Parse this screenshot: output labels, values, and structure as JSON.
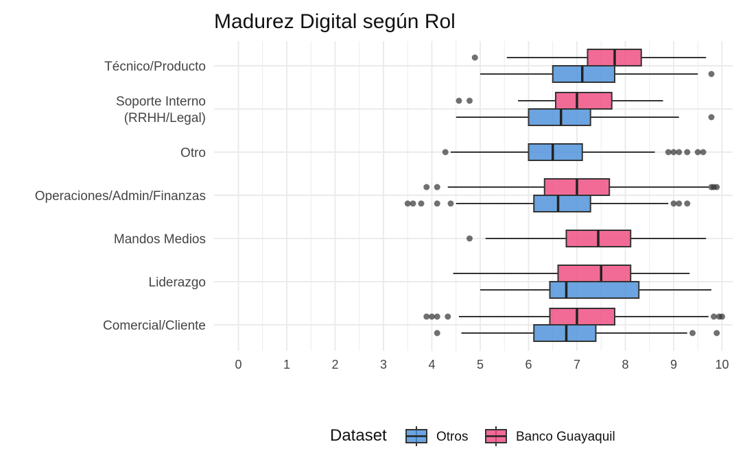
{
  "chart_data": {
    "type": "boxplot",
    "orientation": "horizontal",
    "title": "Madurez Digital según Rol",
    "xlabel": "",
    "ylabel": "",
    "xlim": [
      0,
      10
    ],
    "x_ticks": [
      "0",
      "1",
      "2",
      "3",
      "4",
      "5",
      "6",
      "7",
      "8",
      "9",
      "10"
    ],
    "grid": true,
    "legend_position": "bottom",
    "legend_title": "Dataset",
    "colors": {
      "Otros": "#4a90d9",
      "Banco Guayaquil": "#ee4a7f"
    },
    "categories": [
      "Técnico/Producto",
      [
        "Soporte Interno",
        "(RRHH/Legal)"
      ],
      "Otro",
      "Operaciones/Admin/Finanzas",
      "Mandos Medios",
      "Liderazgo",
      "Comercial/Cliente"
    ],
    "series": [
      {
        "name": "Banco Guayaquil",
        "boxes": [
          {
            "category_index": 0,
            "whisker_low": 5.55,
            "q1": 7.22,
            "median": 7.78,
            "q3": 8.33,
            "whisker_high": 9.67,
            "outliers": [
              4.89
            ]
          },
          {
            "category_index": 1,
            "whisker_low": 5.78,
            "q1": 6.56,
            "median": 7.0,
            "q3": 7.72,
            "whisker_high": 8.78,
            "outliers": [
              4.56,
              4.78
            ]
          },
          {
            "category_index": 3,
            "whisker_low": 4.33,
            "q1": 6.33,
            "median": 7.0,
            "q3": 7.67,
            "whisker_high": 9.72,
            "outliers": [
              3.89,
              4.11,
              9.78,
              9.83,
              9.89
            ]
          },
          {
            "category_index": 4,
            "whisker_low": 5.11,
            "q1": 6.78,
            "median": 7.44,
            "q3": 8.11,
            "whisker_high": 9.67,
            "outliers": [
              4.78
            ]
          },
          {
            "category_index": 5,
            "whisker_low": 4.44,
            "q1": 6.61,
            "median": 7.5,
            "q3": 8.11,
            "whisker_high": 9.33,
            "outliers": []
          },
          {
            "category_index": 6,
            "whisker_low": 4.56,
            "q1": 6.44,
            "median": 7.0,
            "q3": 7.78,
            "whisker_high": 9.72,
            "outliers": [
              3.89,
              4.0,
              4.11,
              4.33,
              9.83,
              9.94,
              10.0
            ]
          }
        ]
      },
      {
        "name": "Otros",
        "boxes": [
          {
            "category_index": 0,
            "whisker_low": 5.0,
            "q1": 6.5,
            "median": 7.11,
            "q3": 7.78,
            "whisker_high": 9.5,
            "outliers": [
              9.78
            ]
          },
          {
            "category_index": 1,
            "whisker_low": 4.5,
            "q1": 6.0,
            "median": 6.67,
            "q3": 7.28,
            "whisker_high": 9.11,
            "outliers": [
              9.78
            ]
          },
          {
            "category_index": 2,
            "whisker_low": 4.39,
            "q1": 6.0,
            "median": 6.5,
            "q3": 7.11,
            "whisker_high": 8.61,
            "outliers": [
              4.28,
              8.89,
              9.0,
              9.11,
              9.28,
              9.5,
              9.61
            ]
          },
          {
            "category_index": 3,
            "whisker_low": 4.5,
            "q1": 6.11,
            "median": 6.61,
            "q3": 7.28,
            "whisker_high": 8.89,
            "outliers": [
              3.5,
              3.61,
              3.78,
              4.11,
              4.39,
              9.0,
              9.11,
              9.28
            ]
          },
          {
            "category_index": 5,
            "whisker_low": 5.0,
            "q1": 6.44,
            "median": 6.78,
            "q3": 8.28,
            "whisker_high": 9.78,
            "outliers": []
          },
          {
            "category_index": 6,
            "whisker_low": 4.61,
            "q1": 6.11,
            "median": 6.78,
            "q3": 7.39,
            "whisker_high": 9.28,
            "outliers": [
              4.11,
              9.39,
              9.89
            ]
          }
        ]
      }
    ]
  }
}
